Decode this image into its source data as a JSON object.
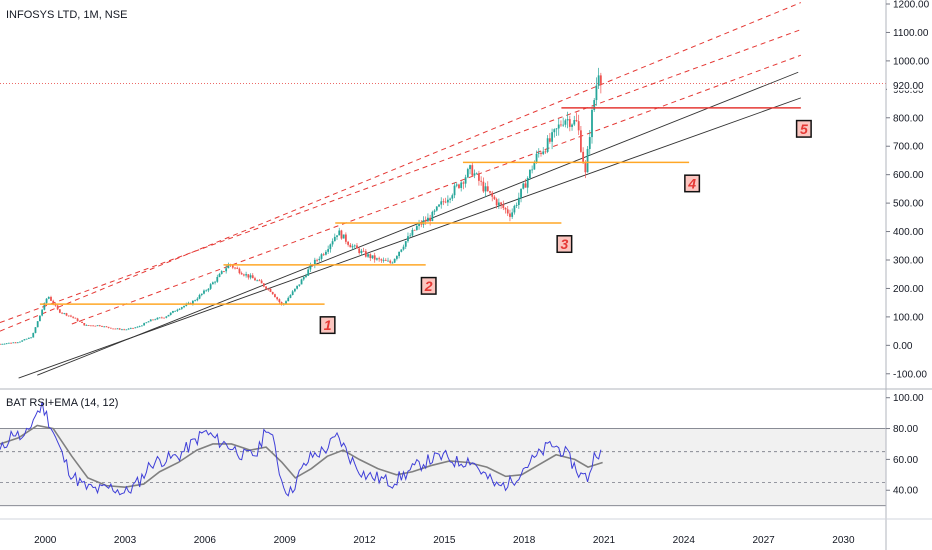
{
  "header": {
    "title": "INFOSYS LTD, 1M, NSE"
  },
  "price_label": "920.00",
  "annotations": [
    "1",
    "2",
    "3",
    "4",
    "5"
  ],
  "chart_data": [
    {
      "type": "candlestick",
      "title": "INFOSYS LTD, 1M, NSE",
      "x_unit": "year",
      "xlim": [
        1998.3,
        2031.6
      ],
      "ylim": [
        -150,
        1200
      ],
      "y_ticks": [
        "-100.00",
        "0.00",
        "100.00",
        "200.00",
        "300.00",
        "400.00",
        "500.00",
        "600.00",
        "700.00",
        "800.00",
        "900.00",
        "1000.00",
        "1100.00",
        "1200.00"
      ],
      "x_ticks": [
        "2000",
        "2003",
        "2006",
        "2009",
        "2012",
        "2015",
        "2018",
        "2021",
        "2024",
        "2027",
        "2030"
      ],
      "last_price": 920,
      "close_series": [
        [
          1998.3,
          5
        ],
        [
          1999.0,
          12
        ],
        [
          1999.5,
          30
        ],
        [
          1999.9,
          130
        ],
        [
          2000.1,
          175
        ],
        [
          2000.5,
          120
        ],
        [
          2001.0,
          100
        ],
        [
          2001.5,
          70
        ],
        [
          2002.0,
          70
        ],
        [
          2002.5,
          60
        ],
        [
          2003.0,
          55
        ],
        [
          2003.5,
          65
        ],
        [
          2004.0,
          90
        ],
        [
          2004.5,
          100
        ],
        [
          2005.0,
          130
        ],
        [
          2005.5,
          150
        ],
        [
          2006.0,
          190
        ],
        [
          2006.5,
          240
        ],
        [
          2006.9,
          285
        ],
        [
          2007.5,
          250
        ],
        [
          2008.0,
          225
        ],
        [
          2008.5,
          190
        ],
        [
          2008.9,
          140
        ],
        [
          2009.5,
          210
        ],
        [
          2010.0,
          280
        ],
        [
          2010.5,
          330
        ],
        [
          2011.0,
          400
        ],
        [
          2011.5,
          350
        ],
        [
          2012.0,
          320
        ],
        [
          2012.5,
          300
        ],
        [
          2013.0,
          290
        ],
        [
          2013.5,
          360
        ],
        [
          2014.0,
          420
        ],
        [
          2014.5,
          450
        ],
        [
          2015.0,
          510
        ],
        [
          2015.5,
          560
        ],
        [
          2016.0,
          620
        ],
        [
          2016.5,
          550
        ],
        [
          2017.0,
          500
        ],
        [
          2017.5,
          460
        ],
        [
          2018.0,
          560
        ],
        [
          2018.5,
          670
        ],
        [
          2019.0,
          720
        ],
        [
          2019.5,
          800
        ],
        [
          2020.0,
          780
        ],
        [
          2020.3,
          600
        ],
        [
          2020.5,
          780
        ],
        [
          2020.8,
          970
        ],
        [
          2020.95,
          920
        ]
      ],
      "horizontal_levels": [
        {
          "label": "1",
          "y": 145,
          "x_start": 1999.8,
          "x_end": 2010.5,
          "color": "#ffa726"
        },
        {
          "label": "2",
          "y": 283,
          "x_start": 2006.7,
          "x_end": 2014.3,
          "color": "#ffa726"
        },
        {
          "label": "3",
          "y": 430,
          "x_start": 2010.9,
          "x_end": 2019.4,
          "color": "#ffa726"
        },
        {
          "label": "4",
          "y": 643,
          "x_start": 2015.7,
          "x_end": 2024.2,
          "color": "#ffa726"
        },
        {
          "label": "5",
          "y": 835,
          "x_start": 2019.4,
          "x_end": 2028.4,
          "color": "#e53935"
        }
      ],
      "trend_lines": [
        {
          "from": [
            1999.7,
            -105
          ],
          "to": [
            2028.3,
            960
          ],
          "color": "#333333",
          "style": "solid"
        },
        {
          "from": [
            1999.0,
            -115
          ],
          "to": [
            2028.4,
            870
          ],
          "color": "#333333",
          "style": "solid"
        },
        {
          "from": [
            1998.3,
            50
          ],
          "to": [
            2028.4,
            1205
          ],
          "color": "#e53935",
          "style": "dashed"
        },
        {
          "from": [
            1998.3,
            80
          ],
          "to": [
            2028.4,
            1110
          ],
          "color": "#e53935",
          "style": "dashed"
        },
        {
          "from": [
            2001.0,
            75
          ],
          "to": [
            2028.4,
            1020
          ],
          "color": "#e53935",
          "style": "dashed"
        }
      ]
    },
    {
      "type": "line",
      "title": "BAT RSI+EMA (14, 12)",
      "x_unit": "year",
      "xlim": [
        1998.3,
        2031.6
      ],
      "ylim": [
        22,
        105
      ],
      "y_ticks": [
        "40.00",
        "60.00",
        "80.00",
        "100.00"
      ],
      "band": [
        30,
        80
      ],
      "dashed_levels": [
        45,
        65
      ],
      "series": [
        {
          "name": "RSI",
          "color": "#3f3fd8",
          "points": [
            [
              1998.3,
              65
            ],
            [
              1998.8,
              78
            ],
            [
              1999.2,
              72
            ],
            [
              1999.6,
              88
            ],
            [
              1999.9,
              95
            ],
            [
              2000.3,
              78
            ],
            [
              2000.7,
              60
            ],
            [
              2001.0,
              50
            ],
            [
              2001.5,
              42
            ],
            [
              2002.0,
              40
            ],
            [
              2002.5,
              42
            ],
            [
              2003.0,
              38
            ],
            [
              2003.5,
              45
            ],
            [
              2004.0,
              58
            ],
            [
              2004.5,
              60
            ],
            [
              2005.0,
              62
            ],
            [
              2005.5,
              70
            ],
            [
              2006.0,
              78
            ],
            [
              2006.5,
              72
            ],
            [
              2007.0,
              68
            ],
            [
              2007.5,
              62
            ],
            [
              2008.0,
              64
            ],
            [
              2008.3,
              82
            ],
            [
              2008.6,
              70
            ],
            [
              2008.9,
              45
            ],
            [
              2009.2,
              38
            ],
            [
              2009.6,
              52
            ],
            [
              2010.0,
              62
            ],
            [
              2010.5,
              66
            ],
            [
              2011.0,
              75
            ],
            [
              2011.5,
              60
            ],
            [
              2012.0,
              50
            ],
            [
              2012.5,
              48
            ],
            [
              2013.0,
              45
            ],
            [
              2013.5,
              50
            ],
            [
              2014.0,
              56
            ],
            [
              2014.5,
              60
            ],
            [
              2015.0,
              62
            ],
            [
              2015.5,
              58
            ],
            [
              2016.0,
              60
            ],
            [
              2016.5,
              50
            ],
            [
              2017.0,
              42
            ],
            [
              2017.5,
              45
            ],
            [
              2018.0,
              55
            ],
            [
              2018.5,
              62
            ],
            [
              2019.0,
              70
            ],
            [
              2019.5,
              65
            ],
            [
              2019.8,
              58
            ],
            [
              2020.1,
              50
            ],
            [
              2020.4,
              48
            ],
            [
              2020.7,
              66
            ],
            [
              2020.95,
              63
            ]
          ]
        },
        {
          "name": "EMA",
          "color": "#808080",
          "points": [
            [
              1998.3,
              70
            ],
            [
              1999.0,
              74
            ],
            [
              1999.7,
              82
            ],
            [
              2000.3,
              80
            ],
            [
              2001.0,
              62
            ],
            [
              2001.6,
              48
            ],
            [
              2002.3,
              43
            ],
            [
              2003.0,
              42
            ],
            [
              2003.7,
              44
            ],
            [
              2004.3,
              52
            ],
            [
              2005.0,
              58
            ],
            [
              2005.7,
              66
            ],
            [
              2006.3,
              70
            ],
            [
              2007.0,
              70
            ],
            [
              2007.7,
              66
            ],
            [
              2008.3,
              68
            ],
            [
              2008.9,
              58
            ],
            [
              2009.4,
              48
            ],
            [
              2010.0,
              54
            ],
            [
              2010.6,
              62
            ],
            [
              2011.2,
              66
            ],
            [
              2011.8,
              60
            ],
            [
              2012.5,
              54
            ],
            [
              2013.2,
              50
            ],
            [
              2013.8,
              52
            ],
            [
              2014.5,
              56
            ],
            [
              2015.2,
              59
            ],
            [
              2015.9,
              58
            ],
            [
              2016.6,
              55
            ],
            [
              2017.3,
              49
            ],
            [
              2017.9,
              50
            ],
            [
              2018.5,
              56
            ],
            [
              2019.2,
              63
            ],
            [
              2019.9,
              60
            ],
            [
              2020.4,
              55
            ],
            [
              2020.95,
              58
            ]
          ]
        }
      ]
    }
  ]
}
